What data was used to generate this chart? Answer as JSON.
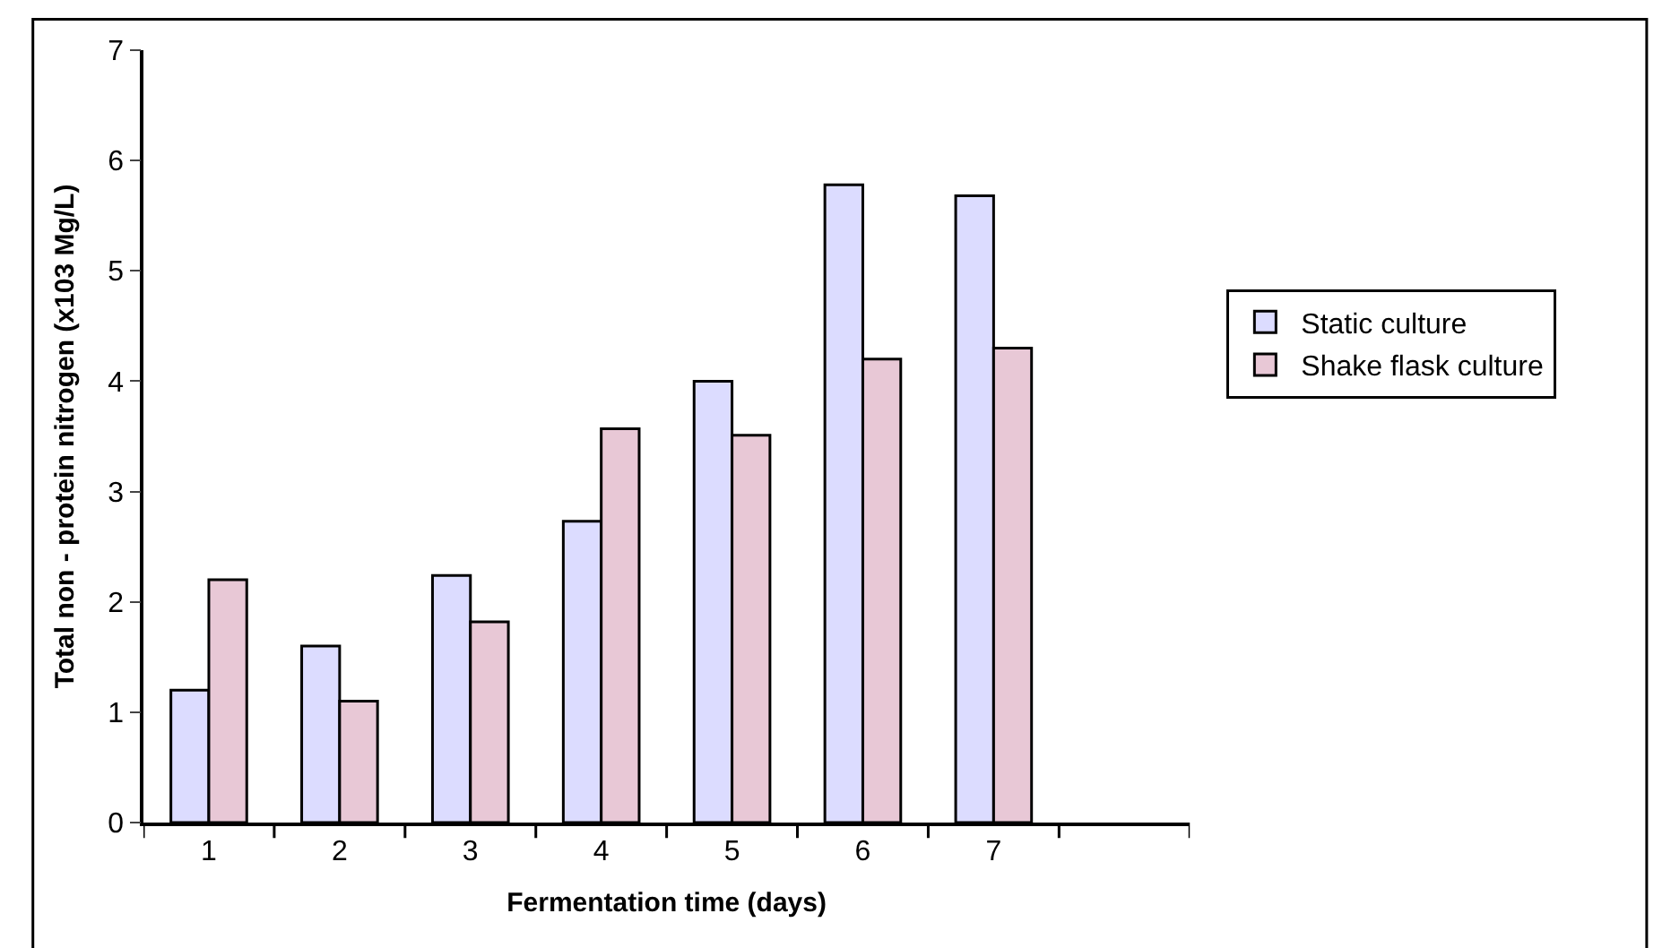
{
  "chart_data": {
    "type": "bar",
    "xlabel": "Fermentation time (days)",
    "ylabel": "Total non - protein nitrogen (x103 Mg/L)",
    "categories": [
      "1",
      "2",
      "3",
      "4",
      "5",
      "6",
      "7",
      null
    ],
    "series": [
      {
        "name": "Static culture",
        "color": "#dcdcff",
        "values": [
          1.2,
          1.6,
          2.24,
          2.73,
          4.0,
          5.78,
          5.68,
          null
        ]
      },
      {
        "name": "Shake flask culture",
        "color": "#e8c8d6",
        "values": [
          2.2,
          1.1,
          1.82,
          3.57,
          3.51,
          4.2,
          4.3,
          null
        ]
      }
    ],
    "ylim": [
      0,
      7
    ],
    "yticks": [
      0,
      1,
      2,
      3,
      4,
      5,
      6,
      7
    ],
    "legend": "right"
  }
}
